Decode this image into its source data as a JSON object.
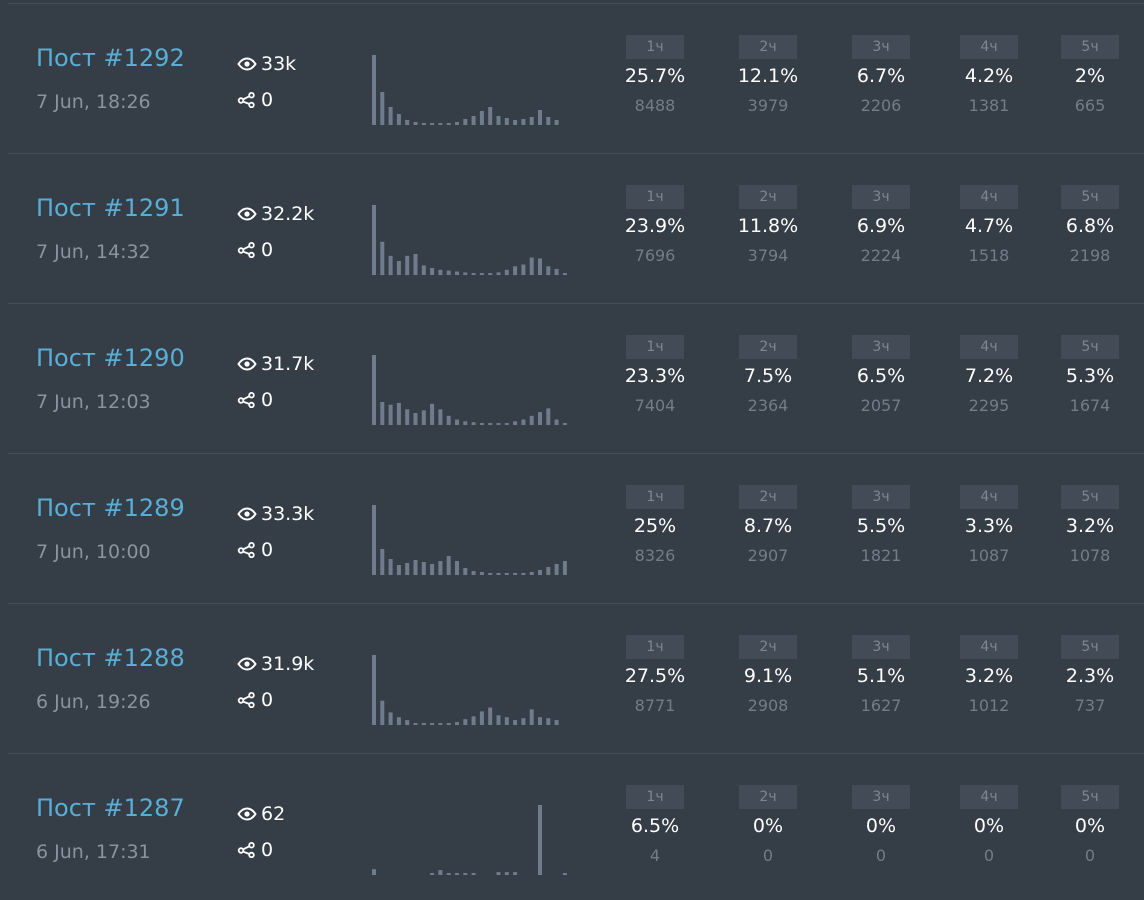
{
  "posts": [
    {
      "title": "Пост #1292",
      "date": "7 Jun, 18:26",
      "views": "33k",
      "shares": "0",
      "spark": [
        70,
        33,
        18,
        11,
        5,
        3,
        2,
        2,
        2,
        2,
        3,
        6,
        9,
        14,
        18,
        9,
        7,
        5,
        6,
        8,
        15,
        8,
        5
      ],
      "cells": [
        {
          "header": "1ч",
          "percent": "25.7%",
          "count": "8488"
        },
        {
          "header": "2ч",
          "percent": "12.1%",
          "count": "3979"
        },
        {
          "header": "3ч",
          "percent": "6.7%",
          "count": "2206"
        },
        {
          "header": "4ч",
          "percent": "4.2%",
          "count": "1381"
        },
        {
          "header": "5ч",
          "percent": "2%",
          "count": "665"
        }
      ]
    },
    {
      "title": "Пост #1291",
      "date": "7 Jun, 14:32",
      "views": "32.2k",
      "shares": "0",
      "spark": [
        80,
        38,
        22,
        16,
        22,
        24,
        11,
        8,
        6,
        5,
        4,
        3,
        2,
        2,
        2,
        3,
        6,
        10,
        12,
        20,
        19,
        10,
        7,
        2
      ],
      "cells": [
        {
          "header": "1ч",
          "percent": "23.9%",
          "count": "7696"
        },
        {
          "header": "2ч",
          "percent": "11.8%",
          "count": "3794"
        },
        {
          "header": "3ч",
          "percent": "6.9%",
          "count": "2224"
        },
        {
          "header": "4ч",
          "percent": "4.7%",
          "count": "1518"
        },
        {
          "header": "5ч",
          "percent": "6.8%",
          "count": "2198"
        }
      ]
    },
    {
      "title": "Пост #1290",
      "date": "7 Jun, 12:03",
      "views": "31.7k",
      "shares": "0",
      "spark": [
        76,
        25,
        22,
        24,
        17,
        13,
        16,
        23,
        17,
        10,
        6,
        4,
        3,
        2,
        2,
        2,
        2,
        4,
        6,
        10,
        14,
        18,
        6,
        2
      ],
      "cells": [
        {
          "header": "1ч",
          "percent": "23.3%",
          "count": "7404"
        },
        {
          "header": "2ч",
          "percent": "7.5%",
          "count": "2364"
        },
        {
          "header": "3ч",
          "percent": "6.5%",
          "count": "2057"
        },
        {
          "header": "4ч",
          "percent": "7.2%",
          "count": "2295"
        },
        {
          "header": "5ч",
          "percent": "5.3%",
          "count": "1674"
        }
      ]
    },
    {
      "title": "Пост #1289",
      "date": "7 Jun, 10:00",
      "views": "33.3k",
      "shares": "0",
      "spark": [
        70,
        26,
        16,
        10,
        12,
        15,
        13,
        11,
        14,
        19,
        14,
        7,
        4,
        3,
        2,
        2,
        2,
        2,
        2,
        3,
        5,
        8,
        11,
        14
      ],
      "cells": [
        {
          "header": "1ч",
          "percent": "25%",
          "count": "8326"
        },
        {
          "header": "2ч",
          "percent": "8.7%",
          "count": "2907"
        },
        {
          "header": "3ч",
          "percent": "5.5%",
          "count": "1821"
        },
        {
          "header": "4ч",
          "percent": "3.3%",
          "count": "1087"
        },
        {
          "header": "5ч",
          "percent": "3.2%",
          "count": "1078"
        }
      ]
    },
    {
      "title": "Пост #1288",
      "date": "6 Jun, 19:26",
      "views": "31.9k",
      "shares": "0",
      "spark": [
        72,
        25,
        13,
        8,
        5,
        2,
        2,
        2,
        2,
        2,
        3,
        6,
        9,
        14,
        18,
        10,
        8,
        5,
        7,
        16,
        8,
        7,
        5
      ],
      "cells": [
        {
          "header": "1ч",
          "percent": "27.5%",
          "count": "8771"
        },
        {
          "header": "2ч",
          "percent": "9.1%",
          "count": "2908"
        },
        {
          "header": "3ч",
          "percent": "5.1%",
          "count": "1627"
        },
        {
          "header": "4ч",
          "percent": "3.2%",
          "count": "1012"
        },
        {
          "header": "5ч",
          "percent": "2.3%",
          "count": "737"
        }
      ]
    },
    {
      "title": "Пост #1287",
      "date": "6 Jun, 17:31",
      "views": "62",
      "shares": "0",
      "spark": [
        6,
        0,
        0,
        0,
        0,
        0,
        0,
        2,
        5,
        2,
        2,
        2,
        2,
        0,
        0,
        3,
        3,
        3,
        0,
        0,
        72,
        0,
        0,
        2
      ],
      "cells": [
        {
          "header": "1ч",
          "percent": "6.5%",
          "count": "4"
        },
        {
          "header": "2ч",
          "percent": "0%",
          "count": "0"
        },
        {
          "header": "3ч",
          "percent": "0%",
          "count": "0"
        },
        {
          "header": "4ч",
          "percent": "0%",
          "count": "0"
        },
        {
          "header": "5ч",
          "percent": "0%",
          "count": "0"
        }
      ]
    }
  ],
  "icons": {
    "views": "eye-icon",
    "shares": "share-icon"
  },
  "colors": {
    "background": "#353d47",
    "title": "#5aaed6",
    "bar": "#6f7c8d"
  }
}
